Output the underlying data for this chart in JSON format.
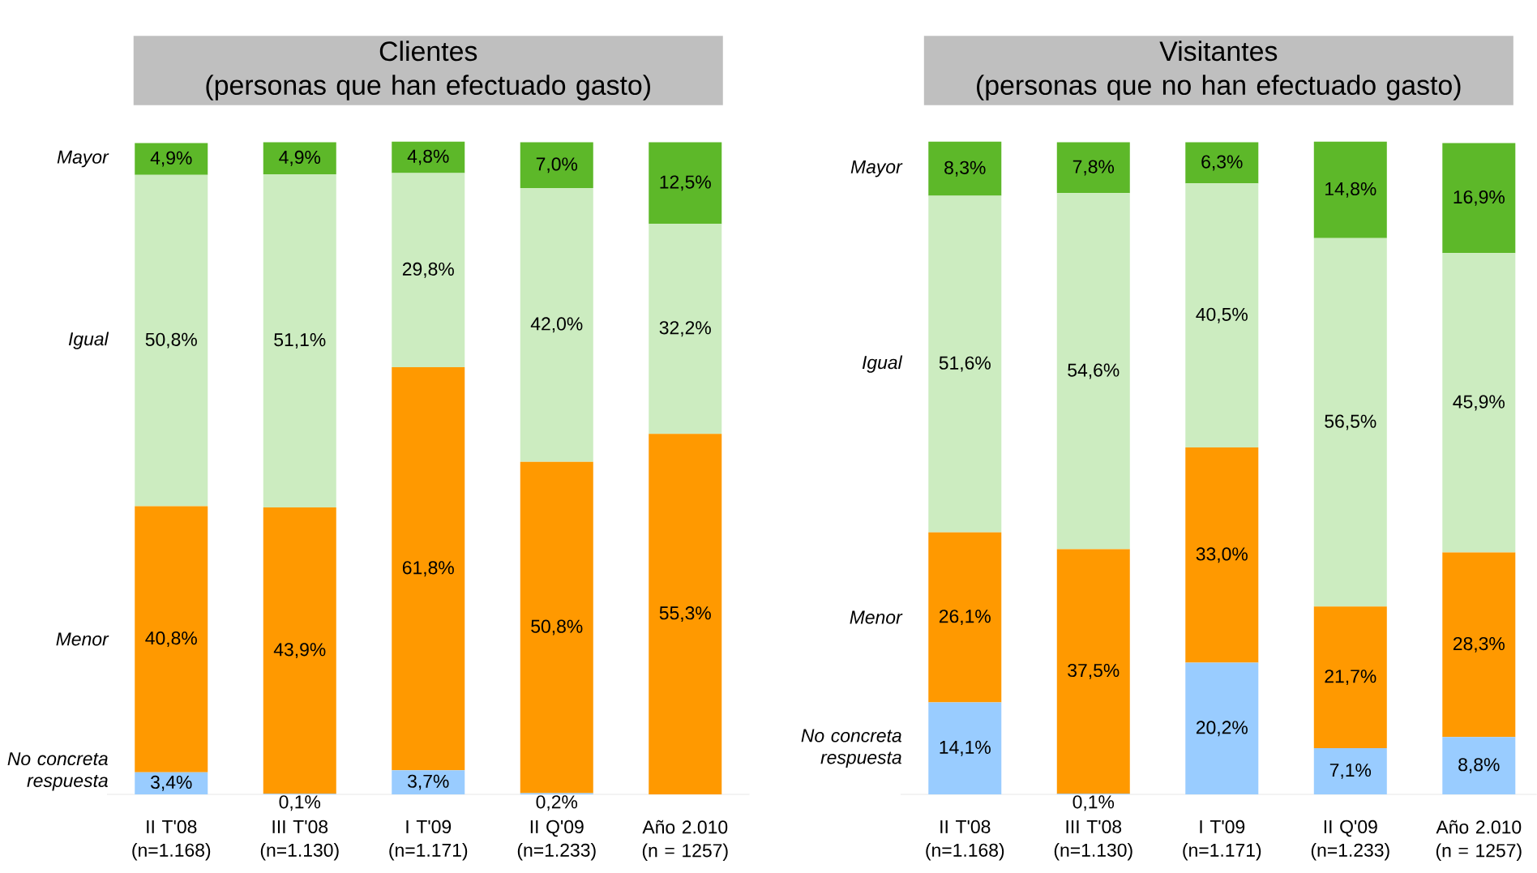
{
  "chart_data": [
    {
      "type": "bar",
      "stacked": true,
      "title": "Clientes",
      "subtitle": "(personas que han efectuado gasto)",
      "categories": [
        "II T'08 (n=1.168)",
        "III T'08 (n=1.130)",
        "I T'09 (n=1.171)",
        "II Q'09 (n=1.233)",
        "Año 2.010 (n = 1257)"
      ],
      "ylim": [
        0,
        100.2
      ],
      "tick_labels": "x",
      "series": [
        {
          "name": "No concreta respuesta",
          "color": "#99ccff",
          "values": [
            3.4,
            0.1,
            3.7,
            0.2,
            0
          ],
          "value_labels": [
            "3,4%",
            "0,1%",
            "3,7%",
            "0,2%",
            null
          ]
        },
        {
          "name": "Menor",
          "color": "#ff9900",
          "values": [
            40.8,
            43.9,
            61.8,
            50.8,
            55.3
          ],
          "value_labels": [
            "40,8%",
            "43,9%",
            "61,8%",
            "50,8%",
            "55,3%"
          ]
        },
        {
          "name": "Igual",
          "color": "#ccecc0",
          "values": [
            50.8,
            51.1,
            29.8,
            42.0,
            32.2
          ],
          "value_labels": [
            "50,8%",
            "51,1%",
            "29,8%",
            "42,0%",
            "32,2%"
          ]
        },
        {
          "name": "Mayor",
          "color": "#5db829",
          "values": [
            4.9,
            4.9,
            4.8,
            7.0,
            12.5
          ],
          "value_labels": [
            "4,9%",
            "4,9%",
            "4,8%",
            "7,0%",
            "12,5%"
          ]
        }
      ]
    },
    {
      "type": "bar",
      "stacked": true,
      "title": "Visitantes",
      "subtitle": "(personas que no han efectuado gasto)",
      "categories": [
        "II T'08 (n=1.168)",
        "III T'08 (n=1.130)",
        "I T'09 (n=1.171)",
        "II Q'09 (n=1.233)",
        "Año 2.010 (n = 1257)"
      ],
      "ylim": [
        0,
        100.2
      ],
      "tick_labels": "x",
      "series": [
        {
          "name": "No concreta respuesta",
          "color": "#99ccff",
          "values": [
            14.1,
            0.1,
            20.2,
            7.1,
            8.8
          ],
          "value_labels": [
            "14,1%",
            "0,1%",
            "20,2%",
            "7,1%",
            "8,8%"
          ]
        },
        {
          "name": "Menor",
          "color": "#ff9900",
          "values": [
            26.1,
            37.5,
            33.0,
            21.7,
            28.3
          ],
          "value_labels": [
            "26,1%",
            "37,5%",
            "33,0%",
            "21,7%",
            "28,3%"
          ]
        },
        {
          "name": "Igual",
          "color": "#ccecc0",
          "values": [
            51.6,
            54.6,
            40.5,
            56.5,
            45.9
          ],
          "value_labels": [
            "51,6%",
            "54,6%",
            "40,5%",
            "56,5%",
            "45,9%"
          ]
        },
        {
          "name": "Mayor",
          "color": "#5db829",
          "values": [
            8.3,
            7.8,
            6.3,
            14.8,
            16.9
          ],
          "value_labels": [
            "8,3%",
            "7,8%",
            "6,3%",
            "14,8%",
            "16,9%"
          ]
        }
      ]
    }
  ]
}
